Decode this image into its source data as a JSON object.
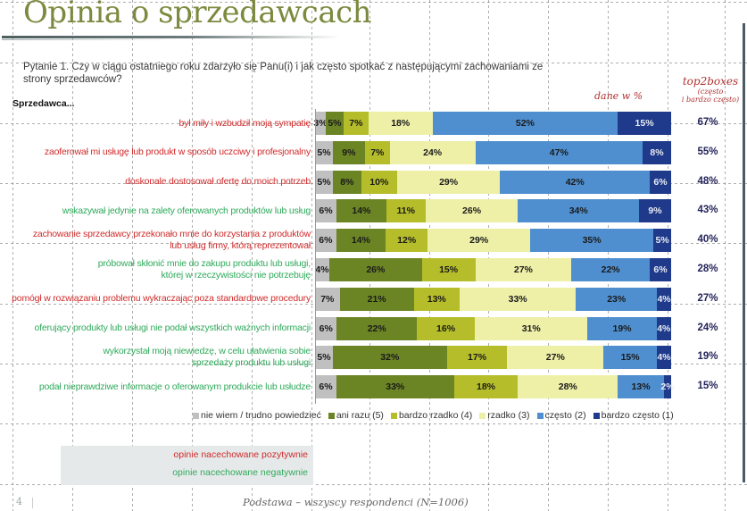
{
  "slide": {
    "title": "Opinia o sprzedawcach",
    "question": "Pytanie 1. Czy w ciągu ostatniego  roku zdarzyło się Panu(i) i jak często spotkać z następującymi zachowaniami ze strony sprzedawców?",
    "subject_label": "Sprzedawca...",
    "units_note": "dane w %",
    "top2boxes_title": "top2boxes",
    "top2boxes_sub1": "(często",
    "top2boxes_sub2": "i bardzo często)",
    "key_positive": "opinie nacechowane pozytywnie",
    "key_negative": "opinie nacechowane negatywnie",
    "footer": "Podstawa – wszyscy respondenci (N=1006)",
    "page_number": "4",
    "colors": {
      "title": "#7b8a3e",
      "positive_label": "#d02b2b",
      "negative_label": "#2faa5b",
      "top2boxes_value": "#23235a"
    }
  },
  "chart_data": {
    "type": "bar",
    "orientation": "horizontal-stacked-100",
    "title": "Opinia o sprzedawcach",
    "xlabel": "",
    "ylabel": "Sprzedawca...",
    "unit": "%",
    "categories": [
      "był miły i wzbudził moją sympatię",
      "zaoferował mi usługę lub produkt w sposób uczciwy i profesjonalny",
      "doskonale dostosował ofertę do moich potrzeb",
      "wskazywał jedynie na zalety oferowanych produktów lub usług",
      "zachowanie sprzedawcy przekonało mnie do korzystania z produktów lub usług firmy, którą reprezentował",
      "próbował skłonić mnie do zakupu produktu lub usługi, której w rzeczywistości nie potrzebuję",
      "pomógł w rozwiązaniu problemu wykraczając poza standardowe procedury",
      "oferujący produkty lub usługi nie podał wszystkich ważnych informacji",
      "wykorzystał moją niewiedzę, w celu ułatwienia sobie sprzedaży produktu lub usługi",
      "podał nieprawdziwe informacje o oferowanym produkcie lub usłudze"
    ],
    "category_lines": [
      [
        "był miły i wzbudził moją sympatię"
      ],
      [
        "zaoferował mi usługę lub produkt w sposób uczciwy i profesjonalny"
      ],
      [
        "doskonale dostosował ofertę do moich potrzeb"
      ],
      [
        "wskazywał jedynie na zalety oferowanych produktów lub usług"
      ],
      [
        "zachowanie sprzedawcy przekonało mnie do korzystania z produktów",
        "lub usług firmy, którą reprezentował"
      ],
      [
        "próbował skłonić mnie do zakupu produktu lub usługi,",
        "której w rzeczywistości nie potrzebuję"
      ],
      [
        "pomógł w rozwiązaniu problemu wykraczając poza standardowe procedury"
      ],
      [
        "oferujący produkty lub usługi nie podał wszystkich ważnych informacji"
      ],
      [
        "wykorzystał moją niewiedzę, w celu ułatwienia sobie",
        "sprzedaży produktu lub usługi"
      ],
      [
        "podał nieprawdziwe informacje o oferowanym produkcie lub usłudze"
      ]
    ],
    "category_sentiment": [
      "positive",
      "positive",
      "positive",
      "negative",
      "positive",
      "negative",
      "positive",
      "negative",
      "negative",
      "negative"
    ],
    "series": [
      {
        "name": "nie wiem / trudno powiedzieć",
        "color": "#c0c0c0",
        "values": [
          3,
          5,
          5,
          6,
          6,
          4,
          7,
          6,
          5,
          6
        ]
      },
      {
        "name": "ani razu (5)",
        "color": "#6b8424",
        "values": [
          5,
          9,
          8,
          14,
          14,
          26,
          21,
          22,
          32,
          33
        ]
      },
      {
        "name": "bardzo rzadko (4)",
        "color": "#b5bd2a",
        "values": [
          7,
          7,
          10,
          11,
          12,
          15,
          13,
          16,
          17,
          18
        ]
      },
      {
        "name": "rzadko (3)",
        "color": "#eef0a8",
        "values": [
          18,
          24,
          29,
          26,
          29,
          27,
          33,
          31,
          27,
          28
        ]
      },
      {
        "name": "często (2)",
        "color": "#4f8fcf",
        "values": [
          52,
          47,
          42,
          34,
          35,
          22,
          23,
          19,
          15,
          13
        ]
      },
      {
        "name": "bardzo często (1)",
        "color": "#1f3a8a",
        "values": [
          15,
          8,
          6,
          9,
          5,
          6,
          4,
          4,
          4,
          2
        ]
      }
    ],
    "top2boxes": {
      "label": "top2boxes (często i bardzo często)",
      "values": [
        67,
        55,
        48,
        43,
        40,
        28,
        27,
        24,
        19,
        15
      ]
    },
    "xlim": [
      0,
      100
    ],
    "legend_position": "bottom",
    "grid": false
  }
}
